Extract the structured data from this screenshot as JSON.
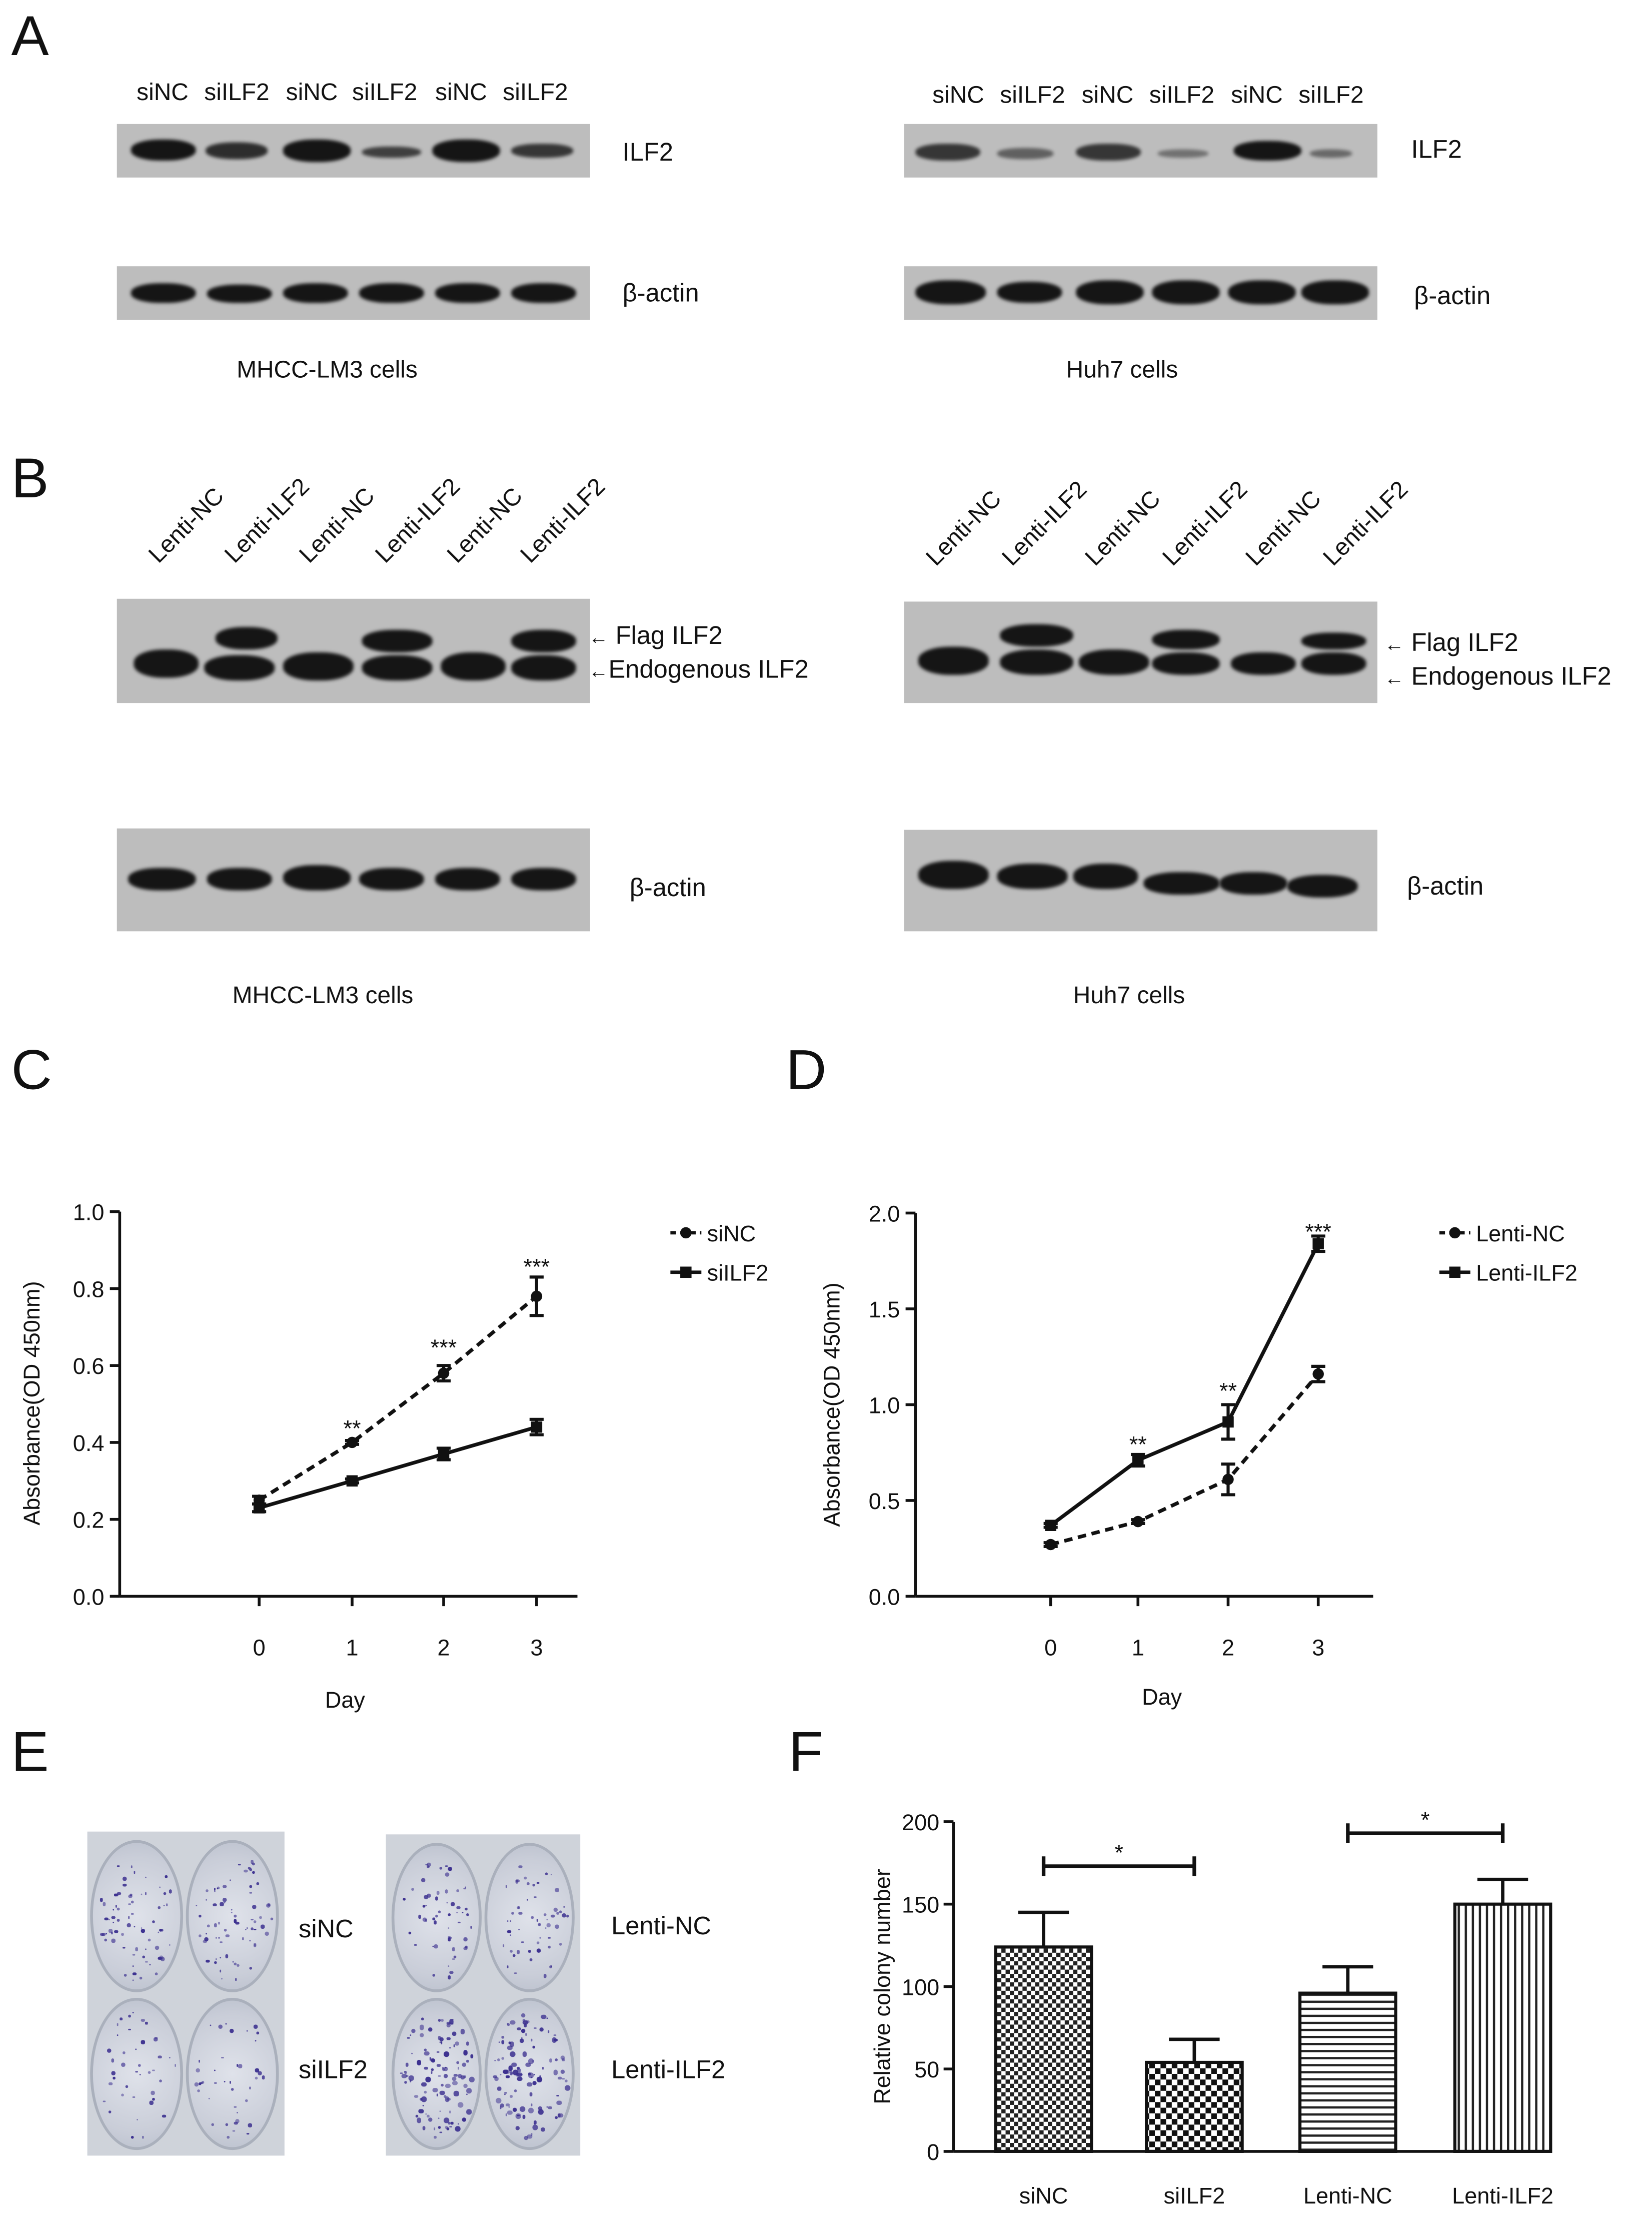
{
  "panels": {
    "A": {
      "letter": "A",
      "left_lanes": [
        "siNC",
        "siILF2",
        "siNC",
        "siILF2",
        "siNC",
        "siILF2"
      ],
      "right_lanes": [
        "siNC",
        "siILF2",
        "siNC",
        "siILF2",
        "siNC",
        "siILF2"
      ],
      "ilf2_label": "ILF2",
      "actin_label": "β-actin",
      "left_cells": "MHCC-LM3 cells",
      "right_cells": "Huh7 cells"
    },
    "B": {
      "letter": "B",
      "lanes": [
        "Lenti-NC",
        "Lenti-ILF2",
        "Lenti-NC",
        "Lenti-ILF2",
        "Lenti-NC",
        "Lenti-ILF2"
      ],
      "flag_label": "Flag ILF2",
      "endo_label": "Endogenous ILF2",
      "actin_label": "β-actin",
      "left_cells": "MHCC-LM3 cells",
      "right_cells": "Huh7 cells"
    },
    "C": {
      "letter": "C"
    },
    "D": {
      "letter": "D"
    },
    "E": {
      "letter": "E",
      "labels": [
        "siNC",
        "siILF2",
        "Lenti-NC",
        "Lenti-ILF2"
      ]
    },
    "F": {
      "letter": "F"
    }
  },
  "chart_data": [
    {
      "id": "C",
      "type": "line",
      "xlabel": "Day",
      "ylabel": "Absorbance(OD 450nm)",
      "x": [
        0,
        1,
        2,
        3
      ],
      "xticks": [
        "0",
        "1",
        "2",
        "3"
      ],
      "ylim": [
        0.0,
        1.0
      ],
      "yticks": [
        "0.0",
        "0.2",
        "0.4",
        "0.6",
        "0.8",
        "1.0"
      ],
      "series": [
        {
          "name": "siNC",
          "style": "dashed",
          "marker": "circle",
          "values": [
            0.25,
            0.4,
            0.58,
            0.78
          ],
          "errors": [
            0.01,
            0.005,
            0.02,
            0.05
          ]
        },
        {
          "name": "siILF2",
          "style": "solid",
          "marker": "square",
          "values": [
            0.23,
            0.3,
            0.37,
            0.44
          ],
          "errors": [
            0.01,
            0.005,
            0.015,
            0.02
          ]
        }
      ],
      "annotations": [
        {
          "x": 1,
          "y": 0.46,
          "text": "**"
        },
        {
          "x": 2,
          "y": 0.67,
          "text": "***"
        },
        {
          "x": 3,
          "y": 0.88,
          "text": "***"
        }
      ],
      "legend": "top-right"
    },
    {
      "id": "D",
      "type": "line",
      "xlabel": "Day",
      "ylabel": "Absorbance(OD 450nm)",
      "x": [
        0,
        1,
        2,
        3
      ],
      "xticks": [
        "0",
        "1",
        "2",
        "3"
      ],
      "ylim": [
        0.0,
        2.0
      ],
      "yticks": [
        "0.0",
        "0.5",
        "1.0",
        "1.5",
        "2.0"
      ],
      "series": [
        {
          "name": "Lenti-NC",
          "style": "dashed",
          "marker": "circle",
          "values": [
            0.27,
            0.39,
            0.61,
            1.16
          ],
          "errors": [
            0.01,
            0.01,
            0.08,
            0.04
          ]
        },
        {
          "name": "Lenti-ILF2",
          "style": "solid",
          "marker": "square",
          "values": [
            0.37,
            0.71,
            0.91,
            1.84
          ],
          "errors": [
            0.01,
            0.03,
            0.09,
            0.04
          ]
        }
      ],
      "annotations": [
        {
          "x": 1,
          "y": 0.84,
          "text": "**"
        },
        {
          "x": 2,
          "y": 1.12,
          "text": "**"
        },
        {
          "x": 3,
          "y": 1.95,
          "text": "***"
        }
      ],
      "legend": "top-right"
    },
    {
      "id": "F",
      "type": "bar",
      "ylabel": "Relative colony number",
      "categories": [
        "siNC",
        "siILF2",
        "Lenti-NC",
        "Lenti-ILF2"
      ],
      "values": [
        124,
        54,
        96,
        150
      ],
      "errors": [
        21,
        14,
        16,
        15
      ],
      "patterns": [
        "checker",
        "checker-dense",
        "horizontal",
        "vertical"
      ],
      "ylim": [
        0,
        200
      ],
      "yticks": [
        "0",
        "50",
        "100",
        "150",
        "200"
      ],
      "significance": [
        {
          "from": 0,
          "to": 1,
          "text": "*"
        },
        {
          "from": 2,
          "to": 3,
          "text": "*"
        }
      ]
    }
  ]
}
